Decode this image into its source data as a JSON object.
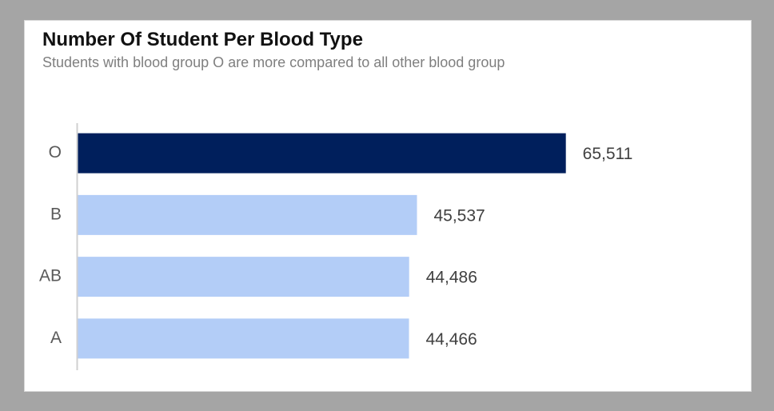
{
  "chart_data": {
    "type": "bar",
    "orientation": "horizontal",
    "title": "Number Of Student Per Blood Type",
    "subtitle": "Students with blood group O are more compared to all other blood group",
    "categories": [
      "O",
      "B",
      "AB",
      "A"
    ],
    "values": [
      65511,
      45537,
      44486,
      44466
    ],
    "value_labels": [
      "65,511",
      "45,537",
      "44,486",
      "44,466"
    ],
    "highlight_category": "O",
    "colors": {
      "highlight": "#001f5c",
      "default": "#b3cdf7",
      "axis": "#d0d0d0",
      "background": "#ffffff",
      "frame": "#a5a5a5"
    },
    "xlim": [
      0,
      87000
    ],
    "grid": false,
    "legend": "none"
  }
}
